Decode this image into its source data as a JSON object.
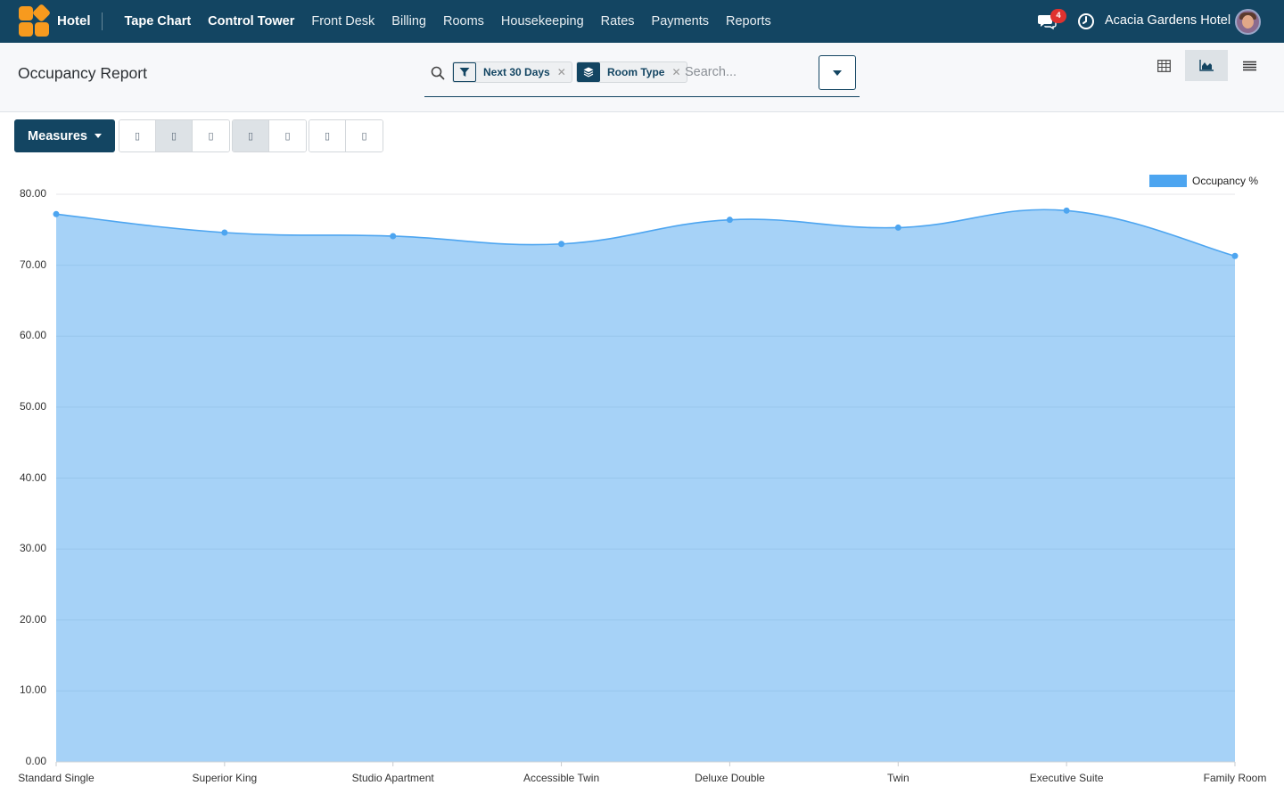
{
  "navbar": {
    "brand": "Hotel",
    "menu": [
      "Tape Chart",
      "Control Tower",
      "Front Desk",
      "Billing",
      "Rooms",
      "Housekeeping",
      "Rates",
      "Payments",
      "Reports"
    ],
    "message_count": "4",
    "company": "Acacia Gardens Hotel",
    "colors": {
      "bar": "#134562",
      "logo": "#f79a1e",
      "badge": "#e0322f"
    }
  },
  "control_panel": {
    "title": "Occupancy Report",
    "facets": [
      {
        "label": "Next 30 Days",
        "icon": "filter-icon"
      },
      {
        "label": "Room Type",
        "icon": "layers-icon"
      }
    ],
    "search_placeholder": "Search...",
    "views": [
      "table-view-icon",
      "graph-view-icon",
      "list-view-icon"
    ],
    "active_view": "graph"
  },
  "toolbar": {
    "measures_label": "Measures",
    "graph_type_buttons": [
      "bar-chart-icon",
      "line-chart-icon",
      "pie-chart-icon"
    ],
    "active_graph_type": "line",
    "order_buttons": [
      "stacked-icon",
      "cumulative-icon"
    ],
    "sort_buttons": [
      "sort-descending-icon",
      "sort-ascending-icon"
    ]
  },
  "chart_data": {
    "type": "area",
    "categories": [
      "Standard Single",
      "Superior King",
      "Studio Apartment",
      "Accessible Twin",
      "Deluxe Double",
      "Twin",
      "Executive Suite",
      "Family Room"
    ],
    "series": [
      {
        "name": "Occupancy %",
        "values": [
          77.2,
          74.6,
          74.1,
          73.0,
          76.4,
          75.3,
          77.7,
          71.3
        ],
        "color": "#4da5f0"
      }
    ],
    "yticks": [
      "0.00",
      "10.00",
      "20.00",
      "30.00",
      "40.00",
      "50.00",
      "60.00",
      "70.00",
      "80.00"
    ],
    "ylim": [
      0,
      80
    ],
    "grid": true,
    "legend": "top-right"
  }
}
